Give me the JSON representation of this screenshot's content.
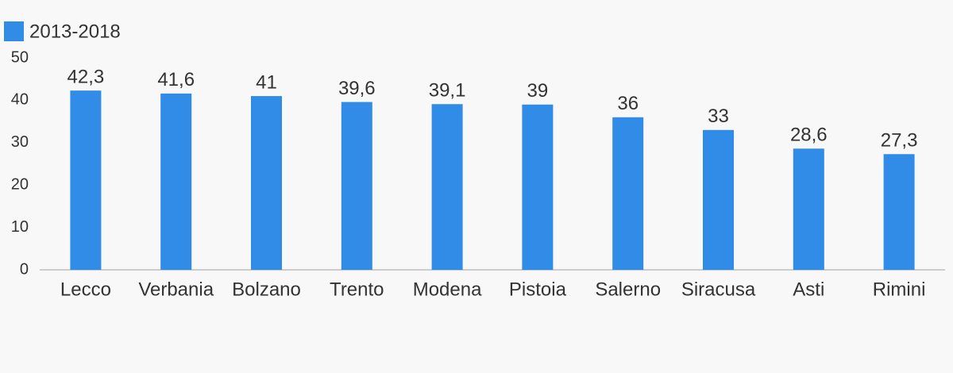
{
  "chart_data": {
    "type": "bar",
    "categories": [
      "Lecco",
      "Verbania",
      "Bolzano",
      "Trento",
      "Modena",
      "Pistoia",
      "Salerno",
      "Siracusa",
      "Asti",
      "Rimini"
    ],
    "series": [
      {
        "name": "2013-2018",
        "color": "#318ce7",
        "values": [
          42.3,
          41.6,
          41,
          39.6,
          39.1,
          39,
          36,
          33,
          28.6,
          27.3
        ],
        "value_labels": [
          "42,3",
          "41,6",
          "41",
          "39,6",
          "39,1",
          "39",
          "36",
          "33",
          "28,6",
          "27,3"
        ]
      }
    ],
    "ylim": [
      0,
      50
    ],
    "yticks": [
      0,
      10,
      20,
      30,
      40,
      50
    ],
    "grid": false,
    "legend": "top-left"
  }
}
